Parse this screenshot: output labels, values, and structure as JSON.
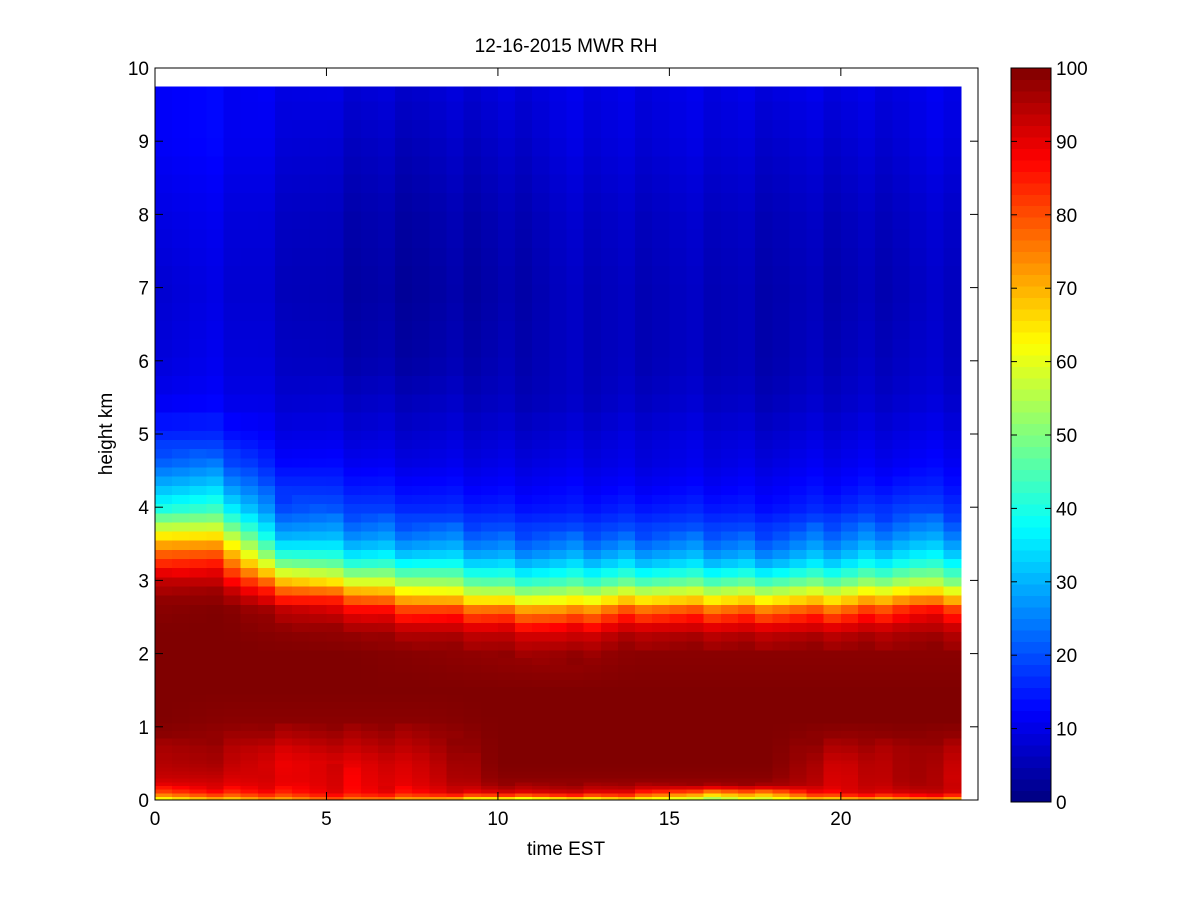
{
  "chart_data": {
    "type": "heatmap",
    "title": "12-16-2015 MWR RH",
    "xlabel": "time EST",
    "ylabel": "height km",
    "xlim": [
      0,
      24
    ],
    "ylim": [
      0,
      10
    ],
    "xticks": [
      0,
      5,
      10,
      15,
      20
    ],
    "yticks": [
      0,
      1,
      2,
      3,
      4,
      5,
      6,
      7,
      8,
      9,
      10
    ],
    "colorbar": {
      "colormap": "jet",
      "range": [
        0,
        100
      ],
      "ticks": [
        0,
        10,
        20,
        30,
        40,
        50,
        60,
        70,
        80,
        90,
        100
      ]
    },
    "grid": false,
    "data_extent": {
      "time_max": 23.5,
      "height_max": 9.75
    },
    "time_step_hours": 0.5,
    "rh_profiles": {
      "description_heights_km": [
        0.0,
        0.1,
        0.2,
        0.3,
        0.5,
        0.7,
        0.9,
        1.1,
        1.5,
        2.0,
        2.3,
        2.6,
        2.8,
        3.0,
        3.2,
        3.4,
        3.6,
        3.8,
        4.0,
        4.3,
        4.6,
        5.0,
        5.5,
        6.0,
        7.0,
        8.0,
        9.0,
        9.75
      ],
      "keyframes": [
        {
          "t": 0,
          "rh": [
            60,
            82,
            90,
            94,
            96,
            97,
            99,
            100,
            100,
            100,
            100,
            99,
            98,
            95,
            88,
            80,
            68,
            55,
            42,
            33,
            25,
            17,
            12,
            10,
            9,
            11,
            13,
            13
          ]
        },
        {
          "t": 2,
          "rh": [
            65,
            84,
            90,
            92,
            95,
            96,
            98,
            99,
            100,
            100,
            100,
            100,
            98,
            92,
            84,
            75,
            63,
            50,
            40,
            30,
            22,
            15,
            11,
            10,
            9,
            10,
            12,
            12
          ]
        },
        {
          "t": 3.5,
          "rh": [
            70,
            86,
            90,
            91,
            90,
            92,
            96,
            99,
            100,
            100,
            99,
            96,
            86,
            72,
            55,
            42,
            33,
            27,
            22,
            18,
            14,
            11,
            9,
            8,
            7,
            8,
            10,
            11
          ]
        },
        {
          "t": 5.5,
          "rh": [
            75,
            88,
            89,
            89,
            90,
            93,
            96,
            99,
            100,
            100,
            98,
            90,
            78,
            60,
            45,
            35,
            28,
            23,
            19,
            15,
            12,
            9,
            7,
            5,
            4,
            5,
            7,
            9
          ]
        },
        {
          "t": 8,
          "rh": [
            68,
            88,
            91,
            92,
            93,
            95,
            97,
            99,
            100,
            99,
            95,
            82,
            66,
            52,
            40,
            31,
            25,
            20,
            16,
            13,
            10,
            8,
            6,
            4,
            3,
            4,
            6,
            8
          ]
        },
        {
          "t": 10,
          "rh": [
            55,
            90,
            97,
            99,
            100,
            100,
            100,
            100,
            100,
            98,
            93,
            77,
            58,
            44,
            34,
            27,
            22,
            18,
            15,
            12,
            10,
            8,
            6,
            5,
            4,
            5,
            7,
            9
          ]
        },
        {
          "t": 12,
          "rh": [
            58,
            91,
            97,
            99,
            100,
            100,
            100,
            100,
            100,
            97,
            90,
            72,
            55,
            42,
            33,
            26,
            21,
            17,
            14,
            12,
            10,
            8,
            6,
            6,
            6,
            7,
            9,
            10
          ]
        },
        {
          "t": 14,
          "rh": [
            62,
            88,
            96,
            99,
            100,
            100,
            100,
            100,
            100,
            99,
            95,
            80,
            62,
            46,
            35,
            28,
            22,
            18,
            15,
            12,
            10,
            9,
            7,
            6,
            6,
            7,
            9,
            10
          ]
        },
        {
          "t": 16,
          "rh": [
            50,
            72,
            96,
            99,
            100,
            100,
            100,
            100,
            100,
            99,
            94,
            78,
            60,
            45,
            34,
            27,
            22,
            18,
            15,
            12,
            10,
            9,
            7,
            6,
            6,
            7,
            9,
            10
          ]
        },
        {
          "t": 18,
          "rh": [
            58,
            75,
            97,
            99,
            100,
            100,
            100,
            100,
            100,
            99,
            94,
            78,
            60,
            45,
            33,
            26,
            21,
            17,
            14,
            12,
            10,
            8,
            6,
            5,
            5,
            6,
            8,
            10
          ]
        },
        {
          "t": 20,
          "rh": [
            65,
            90,
            91,
            91,
            92,
            95,
            98,
            100,
            100,
            99,
            94,
            78,
            62,
            47,
            36,
            29,
            24,
            20,
            16,
            13,
            11,
            9,
            7,
            6,
            5,
            6,
            8,
            10
          ]
        },
        {
          "t": 22,
          "rh": [
            70,
            92,
            96,
            97,
            97,
            97,
            99,
            100,
            100,
            99,
            96,
            86,
            70,
            54,
            42,
            34,
            28,
            23,
            19,
            15,
            12,
            10,
            8,
            7,
            6,
            7,
            9,
            10
          ]
        },
        {
          "t": 23.5,
          "rh": [
            68,
            92,
            93,
            92,
            93,
            95,
            98,
            100,
            100,
            99,
            95,
            84,
            66,
            50,
            40,
            32,
            26,
            21,
            17,
            14,
            12,
            10,
            8,
            7,
            7,
            8,
            10,
            11
          ]
        }
      ]
    }
  }
}
